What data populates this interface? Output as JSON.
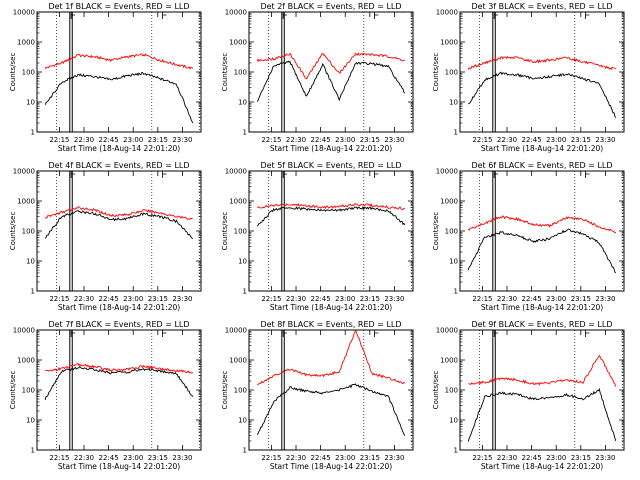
{
  "figure": {
    "start_time_label": "Start Time (18-Aug-14 22:01:20)",
    "ylabel": "Counts/sec",
    "legend_text": "BLACK = Events, RED = LLD",
    "colors": {
      "events": "#000000",
      "lld": "#ff0000",
      "axes": "#000000",
      "background": "#ffffff"
    }
  },
  "chart_data": [
    {
      "type": "line",
      "title": "Det 1f BLACK = Events, RED = LLD",
      "detector": "Det 1f",
      "xlabel": "Start Time (18-Aug-14 22:01:20)",
      "ylabel": "Counts/sec",
      "yscale": "log",
      "ylim": [
        1,
        10000
      ],
      "yticks": [
        "1",
        "10",
        "100",
        "1000",
        "10000"
      ],
      "xticks": [
        "22:15",
        "22:30",
        "22:45",
        "23:00",
        "23:15",
        "23:30"
      ],
      "x_minutes_after_start": [
        5,
        15,
        25,
        35,
        45,
        55,
        65,
        75,
        85,
        95
      ],
      "series": [
        {
          "color": "#ff0000",
          "values": [
            135,
            200,
            360,
            320,
            250,
            320,
            380,
            250,
            175,
            130
          ]
        },
        {
          "color": "#000000",
          "values": [
            8,
            45,
            80,
            70,
            55,
            75,
            90,
            60,
            40,
            2
          ]
        }
      ]
    },
    {
      "type": "line",
      "title": "Det 2f BLACK = Events, RED = LLD",
      "detector": "Det 2f",
      "xlabel": "Start Time (18-Aug-14 22:01:20)",
      "ylabel": "Counts/sec",
      "yscale": "log",
      "ylim": [
        1,
        10000
      ],
      "yticks": [
        "1",
        "10",
        "100",
        "1000",
        "10000"
      ],
      "xticks": [
        "22:15",
        "22:30",
        "22:45",
        "23:00",
        "23:15",
        "23:30"
      ],
      "x_minutes_after_start": [
        5,
        15,
        25,
        35,
        45,
        55,
        65,
        75,
        85,
        95
      ],
      "series": [
        {
          "color": "#ff0000",
          "values": [
            240,
            280,
            400,
            60,
            420,
            90,
            400,
            380,
            330,
            240
          ]
        },
        {
          "color": "#000000",
          "values": [
            10,
            160,
            220,
            15,
            180,
            12,
            200,
            190,
            150,
            20
          ]
        }
      ]
    },
    {
      "type": "line",
      "title": "Det 3f BLACK = Events, RED = LLD",
      "detector": "Det 3f",
      "xlabel": "Start Time (18-Aug-14 22:01:20)",
      "ylabel": "Counts/sec",
      "yscale": "log",
      "ylim": [
        1,
        10000
      ],
      "yticks": [
        "1",
        "10",
        "100",
        "1000",
        "10000"
      ],
      "xticks": [
        "22:15",
        "22:30",
        "22:45",
        "23:00",
        "23:15",
        "23:30"
      ],
      "x_minutes_after_start": [
        5,
        15,
        25,
        35,
        45,
        55,
        65,
        75,
        85,
        95
      ],
      "series": [
        {
          "color": "#ff0000",
          "values": [
            130,
            200,
            300,
            300,
            220,
            250,
            300,
            220,
            160,
            125
          ]
        },
        {
          "color": "#000000",
          "values": [
            8,
            55,
            90,
            80,
            60,
            70,
            85,
            60,
            40,
            3
          ]
        }
      ]
    },
    {
      "type": "line",
      "title": "Det 4f BLACK = Events, RED = LLD",
      "detector": "Det 4f",
      "xlabel": "Start Time (18-Aug-14 22:01:20)",
      "ylabel": "Counts/sec",
      "yscale": "log",
      "ylim": [
        1,
        10000
      ],
      "yticks": [
        "1",
        "10",
        "100",
        "1000",
        "10000"
      ],
      "xticks": [
        "22:15",
        "22:30",
        "22:45",
        "23:00",
        "23:15",
        "23:30"
      ],
      "x_minutes_after_start": [
        5,
        15,
        25,
        35,
        45,
        55,
        65,
        75,
        85,
        95
      ],
      "series": [
        {
          "color": "#ff0000",
          "values": [
            280,
            420,
            600,
            500,
            330,
            350,
            480,
            400,
            300,
            250
          ]
        },
        {
          "color": "#000000",
          "values": [
            60,
            300,
            450,
            380,
            240,
            260,
            370,
            300,
            210,
            55
          ]
        }
      ]
    },
    {
      "type": "line",
      "title": "Det 5f BLACK = Events, RED = LLD",
      "detector": "Det 5f",
      "xlabel": "Start Time (18-Aug-14 22:01:20)",
      "ylabel": "Counts/sec",
      "yscale": "log",
      "ylim": [
        1,
        10000
      ],
      "yticks": [
        "1",
        "10",
        "100",
        "1000",
        "10000"
      ],
      "xticks": [
        "22:15",
        "22:30",
        "22:45",
        "23:00",
        "23:15",
        "23:30"
      ],
      "x_minutes_after_start": [
        5,
        15,
        25,
        35,
        45,
        55,
        65,
        75,
        85,
        95
      ],
      "series": [
        {
          "color": "#ff0000",
          "values": [
            600,
            700,
            780,
            700,
            620,
            650,
            780,
            720,
            620,
            560
          ]
        },
        {
          "color": "#000000",
          "values": [
            150,
            520,
            600,
            540,
            480,
            500,
            600,
            560,
            480,
            160
          ]
        }
      ]
    },
    {
      "type": "line",
      "title": "Det 6f BLACK = Events, RED = LLD",
      "detector": "Det 6f",
      "xlabel": "Start Time (18-Aug-14 22:01:20)",
      "ylabel": "Counts/sec",
      "yscale": "log",
      "ylim": [
        1,
        10000
      ],
      "yticks": [
        "1",
        "10",
        "100",
        "1000",
        "10000"
      ],
      "xticks": [
        "22:15",
        "22:30",
        "22:45",
        "23:00",
        "23:15",
        "23:30"
      ],
      "x_minutes_after_start": [
        5,
        15,
        25,
        35,
        45,
        55,
        65,
        75,
        85,
        95
      ],
      "series": [
        {
          "color": "#ff0000",
          "values": [
            110,
            180,
            300,
            250,
            160,
            150,
            280,
            240,
            140,
            90
          ]
        },
        {
          "color": "#000000",
          "values": [
            5,
            60,
            90,
            70,
            45,
            55,
            110,
            80,
            40,
            4
          ]
        }
      ]
    },
    {
      "type": "line",
      "title": "Det 7f BLACK = Events, RED = LLD",
      "detector": "Det 7f",
      "xlabel": "Start Time (18-Aug-14 22:01:20)",
      "ylabel": "Counts/sec",
      "yscale": "log",
      "ylim": [
        1,
        10000
      ],
      "yticks": [
        "1",
        "10",
        "100",
        "1000",
        "10000"
      ],
      "xticks": [
        "22:15",
        "22:30",
        "22:45",
        "23:00",
        "23:15",
        "23:30"
      ],
      "x_minutes_after_start": [
        5,
        15,
        25,
        35,
        45,
        55,
        65,
        75,
        85,
        95
      ],
      "series": [
        {
          "color": "#ff0000",
          "values": [
            420,
            520,
            700,
            600,
            460,
            480,
            620,
            520,
            430,
            390
          ]
        },
        {
          "color": "#000000",
          "values": [
            50,
            420,
            560,
            480,
            370,
            390,
            500,
            430,
            350,
            60
          ]
        }
      ]
    },
    {
      "type": "line",
      "title": "Det 8f BLACK = Events, RED = LLD",
      "detector": "Det 8f",
      "xlabel": "Start Time (18-Aug-14 22:01:20)",
      "ylabel": "Counts/sec",
      "yscale": "log",
      "ylim": [
        1,
        10000
      ],
      "yticks": [
        "1",
        "10",
        "100",
        "1000",
        "10000"
      ],
      "xticks": [
        "22:15",
        "22:30",
        "22:45",
        "23:00",
        "23:15",
        "23:30"
      ],
      "x_minutes_after_start": [
        5,
        15,
        25,
        35,
        45,
        55,
        65,
        75,
        85,
        95
      ],
      "series": [
        {
          "color": "#ff0000",
          "values": [
            150,
            300,
            500,
            320,
            300,
            400,
            10000,
            350,
            250,
            170
          ]
        },
        {
          "color": "#000000",
          "values": [
            3,
            40,
            120,
            90,
            80,
            100,
            150,
            90,
            60,
            3
          ]
        }
      ]
    },
    {
      "type": "line",
      "title": "Det 9f BLACK = Events, RED = LLD",
      "detector": "Det 9f",
      "xlabel": "Start Time (18-Aug-14 22:01:20)",
      "ylabel": "Counts/sec",
      "yscale": "log",
      "ylim": [
        1,
        10000
      ],
      "yticks": [
        "1",
        "10",
        "100",
        "1000",
        "10000"
      ],
      "xticks": [
        "22:15",
        "22:30",
        "22:45",
        "23:00",
        "23:15",
        "23:30"
      ],
      "x_minutes_after_start": [
        5,
        15,
        25,
        35,
        45,
        55,
        65,
        75,
        85,
        95
      ],
      "series": [
        {
          "color": "#ff0000",
          "values": [
            160,
            180,
            240,
            220,
            160,
            170,
            220,
            180,
            1500,
            130
          ]
        },
        {
          "color": "#000000",
          "values": [
            2,
            60,
            80,
            70,
            50,
            55,
            70,
            50,
            100,
            2
          ]
        }
      ]
    }
  ]
}
